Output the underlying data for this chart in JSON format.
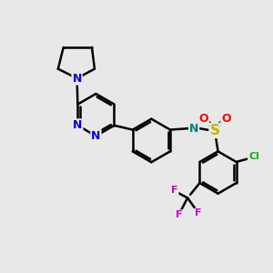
{
  "bg_color": "#e8e8e8",
  "bond_color": "#000000",
  "bond_width": 1.8,
  "atom_colors": {
    "N_blue": "#0000ee",
    "N_teal": "#008080",
    "O_red": "#ff0000",
    "S_yellow": "#bbbb00",
    "Cl_green": "#00bb00",
    "F_magenta": "#cc00cc",
    "C_black": "#000000"
  },
  "font_size": 8,
  "figsize": [
    3.0,
    3.0
  ],
  "dpi": 100,
  "xlim": [
    0,
    10
  ],
  "ylim": [
    0,
    10
  ]
}
